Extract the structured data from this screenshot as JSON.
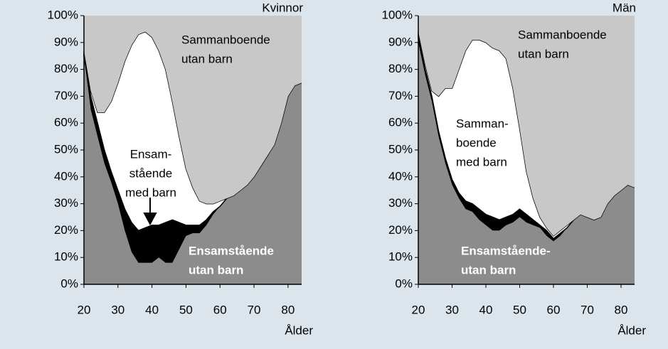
{
  "chart_data": [
    {
      "type": "area",
      "stacked": true,
      "title": "Kvinnor",
      "x_label": "Ålder",
      "x": [
        20,
        22,
        24,
        26,
        28,
        30,
        32,
        34,
        36,
        38,
        40,
        42,
        44,
        46,
        48,
        50,
        52,
        54,
        56,
        58,
        60,
        62,
        64,
        66,
        68,
        70,
        72,
        74,
        76,
        78,
        80,
        82,
        84
      ],
      "xlim": [
        20,
        84
      ],
      "xticks": [
        20,
        30,
        40,
        50,
        60,
        70,
        80
      ],
      "ylim": [
        0,
        100
      ],
      "yticks": [
        {
          "value": 0,
          "label": "0%"
        },
        {
          "value": 10,
          "label": "10%"
        },
        {
          "value": 20,
          "label": "20%"
        },
        {
          "value": 30,
          "label": "30%"
        },
        {
          "value": 40,
          "label": "40%"
        },
        {
          "value": 50,
          "label": "50%"
        },
        {
          "value": 60,
          "label": "60%"
        },
        {
          "value": 70,
          "label": "70%"
        },
        {
          "value": 80,
          "label": "80%"
        },
        {
          "value": 90,
          "label": "90%"
        },
        {
          "value": 100,
          "label": "100%"
        }
      ],
      "series": [
        {
          "label_lines": [
            "Ensamstående",
            "utan barn"
          ],
          "color": "#8c8c8c",
          "values": [
            85,
            65,
            55,
            45,
            38,
            30,
            20,
            12,
            8,
            8,
            8,
            10,
            8,
            8,
            13,
            18,
            19,
            19,
            22,
            26,
            29,
            32,
            33,
            35,
            37,
            40,
            44,
            48,
            52,
            60,
            70,
            74,
            75
          ]
        },
        {
          "label_lines": [
            "Ensam-",
            "stående",
            "med barn"
          ],
          "color": "#000000",
          "values": [
            0,
            5,
            5,
            5,
            4,
            5,
            8,
            11,
            12,
            13,
            14,
            12,
            15,
            16,
            10,
            4,
            3,
            3,
            2,
            1,
            0,
            0,
            0,
            0,
            0,
            0,
            0,
            0,
            0,
            0,
            0,
            0,
            0
          ]
        },
        {
          "color": "#ffffff",
          "values": [
            2,
            2,
            4,
            14,
            26,
            40,
            55,
            66,
            73,
            73,
            70,
            65,
            57,
            44,
            32,
            21,
            14,
            9,
            6,
            3,
            2,
            0,
            0,
            0,
            0,
            0,
            0,
            0,
            0,
            0,
            0,
            0,
            0
          ]
        },
        {
          "label_lines": [
            "Sammanboende",
            "utan barn"
          ],
          "color": "#c8c8c8",
          "values": [
            13,
            28,
            36,
            36,
            32,
            25,
            17,
            11,
            7,
            6,
            8,
            13,
            20,
            32,
            45,
            57,
            64,
            69,
            70,
            70,
            69,
            68,
            67,
            65,
            63,
            60,
            56,
            52,
            48,
            40,
            30,
            26,
            25
          ]
        }
      ]
    },
    {
      "type": "area",
      "stacked": true,
      "title": "Män",
      "x_label": "Ålder",
      "x": [
        20,
        22,
        24,
        26,
        28,
        30,
        32,
        34,
        36,
        38,
        40,
        42,
        44,
        46,
        48,
        50,
        52,
        54,
        56,
        58,
        60,
        62,
        64,
        66,
        68,
        70,
        72,
        74,
        76,
        78,
        80,
        82,
        84
      ],
      "xlim": [
        20,
        84
      ],
      "xticks": [
        20,
        30,
        40,
        50,
        60,
        70,
        80
      ],
      "ylim": [
        0,
        100
      ],
      "yticks": [
        {
          "value": 0,
          "label": "0%"
        },
        {
          "value": 10,
          "label": "10%"
        },
        {
          "value": 20,
          "label": "20%"
        },
        {
          "value": 30,
          "label": "30%"
        },
        {
          "value": 40,
          "label": "40%"
        },
        {
          "value": 50,
          "label": "50%"
        },
        {
          "value": 60,
          "label": "60%"
        },
        {
          "value": 70,
          "label": "70%"
        },
        {
          "value": 80,
          "label": "80%"
        },
        {
          "value": 90,
          "label": "90%"
        },
        {
          "value": 100,
          "label": "100%"
        }
      ],
      "series": [
        {
          "label_lines": [
            "Ensamstående-",
            "utan barn"
          ],
          "color": "#8c8c8c",
          "values": [
            90,
            78,
            68,
            55,
            45,
            37,
            32,
            28,
            27,
            24,
            22,
            20,
            20,
            22,
            23,
            25,
            23,
            22,
            21,
            18,
            16,
            18,
            21,
            24,
            26,
            25,
            24,
            25,
            30,
            33,
            35,
            37,
            36
          ]
        },
        {
          "color": "#000000",
          "values": [
            2,
            2,
            2,
            2,
            2,
            2,
            2,
            3,
            3,
            4,
            4,
            5,
            4,
            3,
            3,
            3,
            3,
            2,
            1,
            2,
            1,
            1,
            0,
            0,
            0,
            0,
            0,
            0,
            0,
            0,
            0,
            0,
            0
          ]
        },
        {
          "label_lines": [
            "Samman-",
            "boende",
            "med barn"
          ],
          "color": "#ffffff",
          "values": [
            2,
            2,
            2,
            13,
            26,
            34,
            46,
            56,
            61,
            63,
            64,
            63,
            63,
            59,
            47,
            30,
            16,
            8,
            3,
            1,
            1,
            1,
            1,
            0,
            0,
            0,
            0,
            0,
            0,
            0,
            0,
            0,
            0
          ]
        },
        {
          "label_lines": [
            "Sammanboende",
            "utan barn"
          ],
          "color": "#c8c8c8",
          "values": [
            6,
            18,
            28,
            30,
            27,
            27,
            20,
            13,
            9,
            9,
            10,
            12,
            13,
            16,
            27,
            42,
            58,
            68,
            75,
            79,
            82,
            80,
            78,
            76,
            74,
            75,
            76,
            75,
            70,
            67,
            65,
            63,
            64
          ]
        }
      ]
    }
  ]
}
